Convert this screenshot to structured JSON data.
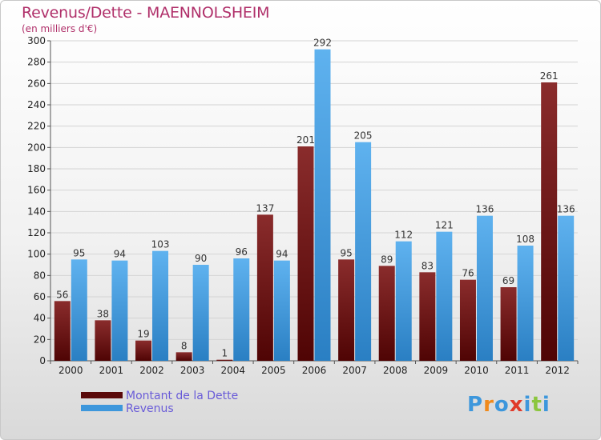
{
  "title": "Revenus/Dette - MAENNOLSHEIM",
  "subtitle": "(en milliers d'€)",
  "logo": "Proxiti",
  "colors": {
    "dette_top": "#8a2c2c",
    "dette_bottom": "#4f0404",
    "revenus_top": "#5fb2ef",
    "revenus_bottom": "#2a7fc3",
    "title": "#b0306a",
    "legend_text": "#6a5cd8"
  },
  "legend": [
    {
      "label": "Montant de la Dette",
      "color": "#5a0a0a"
    },
    {
      "label": "Revenus",
      "color": "#3d97dc"
    }
  ],
  "chart_data": {
    "type": "bar",
    "title": "Revenus/Dette - MAENNOLSHEIM",
    "ylabel": "(en milliers d'€)",
    "xlabel": "",
    "categories": [
      "2000",
      "2001",
      "2002",
      "2003",
      "2004",
      "2005",
      "2006",
      "2007",
      "2008",
      "2009",
      "2010",
      "2011",
      "2012"
    ],
    "series": [
      {
        "name": "Montant de la Dette",
        "values": [
          56,
          38,
          19,
          8,
          1,
          137,
          201,
          95,
          89,
          83,
          76,
          69,
          261
        ]
      },
      {
        "name": "Revenus",
        "values": [
          95,
          94,
          103,
          90,
          96,
          94,
          292,
          205,
          112,
          121,
          136,
          108,
          136
        ]
      }
    ],
    "ylim": [
      0,
      300
    ],
    "yticks": [
      0,
      20,
      40,
      60,
      80,
      100,
      120,
      140,
      160,
      180,
      200,
      220,
      240,
      260,
      280,
      300
    ],
    "grid": true,
    "legend_position": "bottom-left"
  }
}
